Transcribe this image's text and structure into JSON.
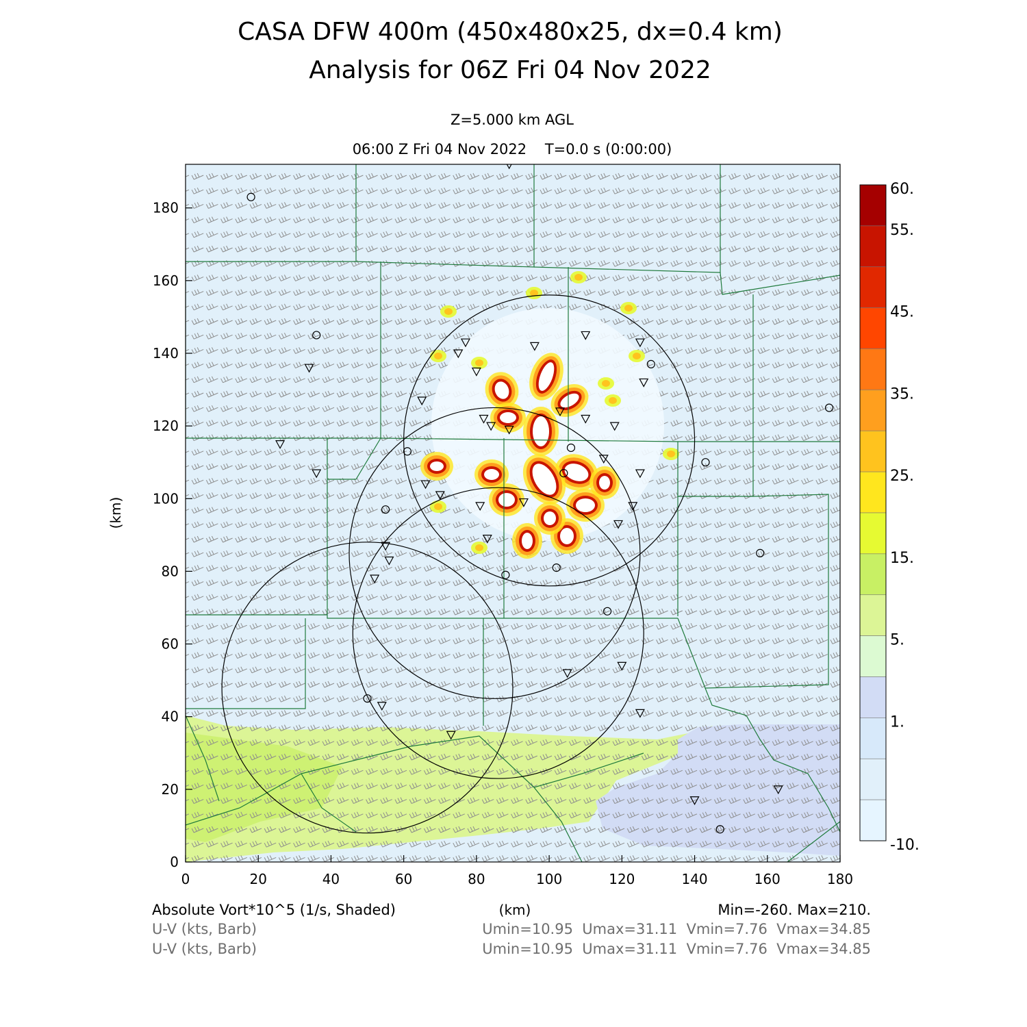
{
  "chart_data": {
    "type": "heatmap",
    "title": "CASA DFW 400m (450x480x25, dx=0.4 km)",
    "subtitle": "Analysis for 06Z Fri 04 Nov 2022",
    "level_label": "Z=5.000 km AGL",
    "time_label": "06:00 Z Fri 04 Nov 2022    T=0.0 s (0:00:00)",
    "xlabel": "(km)",
    "ylabel": "(km)",
    "xlim": [
      0,
      180
    ],
    "ylim": [
      0,
      192
    ],
    "x_ticks": [
      "0",
      "20",
      "40",
      "60",
      "80",
      "100",
      "120",
      "140",
      "160",
      "180"
    ],
    "y_ticks": [
      "0",
      "20",
      "40",
      "60",
      "80",
      "100",
      "120",
      "140",
      "160",
      "180"
    ],
    "colorbar": {
      "labels": [
        "60.",
        "55.",
        "45.",
        "35.",
        "25.",
        "15.",
        "5.",
        "1.",
        "-10."
      ],
      "colors": [
        "#a50000",
        "#c81400",
        "#e12800",
        "#ff4600",
        "#ff7814",
        "#ff9f1e",
        "#ffc31e",
        "#ffe61e",
        "#e6fa32",
        "#c8f064",
        "#dcf596",
        "#dcfad2",
        "#d2dcf5",
        "#d7e9fa",
        "#e1f0fa",
        "#e6f5ff"
      ]
    },
    "field_label": "Absolute Vort*10^5 (1/s, Shaded)",
    "field_stats": "Min=-260. Max=210.",
    "wind_labels": [
      "U-V (kts, Barb)",
      "U-V (kts, Barb)"
    ],
    "wind_stats": [
      "Umin=10.95  Umax=31.11  Vmin=7.76  Vmax=34.85",
      "Umin=10.95  Umax=31.11  Vmin=7.76  Vmax=34.85"
    ],
    "background_value": "near 0 (light blue)",
    "features": [
      {
        "name": "vorticity maxima cluster",
        "x": [
          72,
          118
        ],
        "y": [
          85,
          140
        ],
        "peak": 60
      },
      {
        "name": "low-positive band south",
        "x": [
          0,
          130
        ],
        "y": [
          0,
          40
        ],
        "value": 7
      },
      {
        "name": "weak negative area southeast",
        "x": [
          115,
          180
        ],
        "y": [
          5,
          38
        ],
        "value": 0
      }
    ],
    "radar_rings": [
      {
        "cx": 100,
        "cy": 116,
        "r": 40
      },
      {
        "cx": 85,
        "cy": 85,
        "r": 40
      },
      {
        "cx": 86,
        "cy": 63,
        "r": 40
      },
      {
        "cx": 50,
        "cy": 48,
        "r": 40
      }
    ],
    "stations_circles": [
      [
        18,
        183
      ],
      [
        36,
        145
      ],
      [
        61,
        113
      ],
      [
        55,
        97
      ],
      [
        104,
        107
      ],
      [
        106,
        114
      ],
      [
        102,
        81
      ],
      [
        88,
        79
      ],
      [
        50,
        45
      ],
      [
        116,
        69
      ],
      [
        128,
        137
      ],
      [
        143,
        110
      ],
      [
        158,
        85
      ],
      [
        147,
        9
      ],
      [
        177,
        125
      ]
    ],
    "stations_triangles": [
      [
        89,
        192
      ],
      [
        34,
        136
      ],
      [
        26,
        115
      ],
      [
        36,
        107
      ],
      [
        55,
        87
      ],
      [
        56,
        83
      ],
      [
        52,
        78
      ],
      [
        65,
        127
      ],
      [
        66,
        104
      ],
      [
        70,
        101
      ],
      [
        75,
        140
      ],
      [
        77,
        143
      ],
      [
        80,
        135
      ],
      [
        81,
        98
      ],
      [
        82,
        122
      ],
      [
        83,
        89
      ],
      [
        84,
        120
      ],
      [
        89,
        119
      ],
      [
        93,
        99
      ],
      [
        96,
        142
      ],
      [
        103,
        124
      ],
      [
        110,
        145
      ],
      [
        110,
        122
      ],
      [
        115,
        111
      ],
      [
        118,
        120
      ],
      [
        119,
        93
      ],
      [
        120,
        54
      ],
      [
        123,
        98
      ],
      [
        125,
        143
      ],
      [
        125,
        107
      ],
      [
        126,
        132
      ],
      [
        125,
        41
      ],
      [
        105,
        52
      ],
      [
        73,
        35
      ],
      [
        54,
        43
      ],
      [
        140,
        17
      ],
      [
        163,
        20
      ]
    ]
  }
}
